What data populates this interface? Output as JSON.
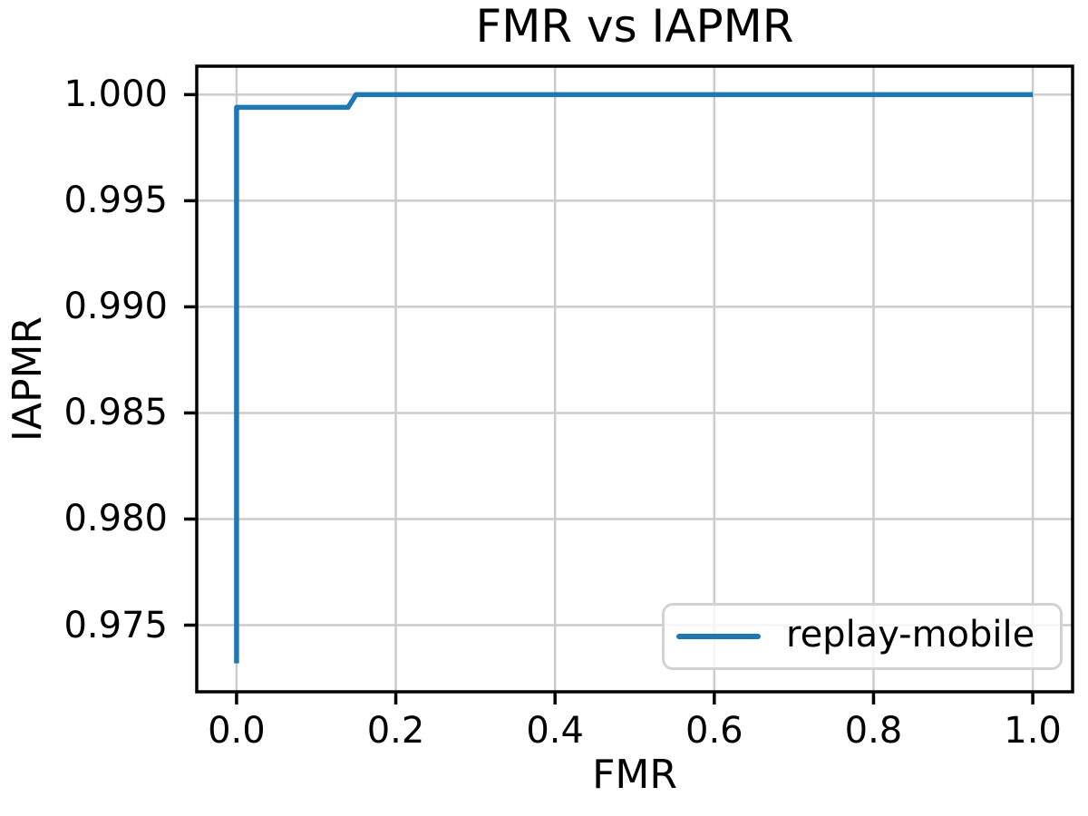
{
  "chart_data": {
    "type": "line",
    "title": "FMR vs IAPMR",
    "xlabel": "FMR",
    "ylabel": "IAPMR",
    "xlim": [
      -0.05,
      1.05
    ],
    "ylim": [
      0.97186,
      1.00134
    ],
    "grid": true,
    "legend_position": "lower right",
    "xticks": {
      "values": [
        0.0,
        0.2,
        0.4,
        0.6,
        0.8,
        1.0
      ],
      "labels": [
        "0.0",
        "0.2",
        "0.4",
        "0.6",
        "0.8",
        "1.0"
      ]
    },
    "yticks": {
      "values": [
        0.975,
        0.98,
        0.985,
        0.99,
        0.995,
        1.0
      ],
      "labels": [
        "0.975",
        "0.980",
        "0.985",
        "0.990",
        "0.995",
        "1.000"
      ]
    },
    "series": [
      {
        "name": "replay-mobile",
        "color": "#1f77b4",
        "points": [
          [
            0.0,
            0.9732
          ],
          [
            0.0,
            0.9994
          ],
          [
            0.14,
            0.9994
          ],
          [
            0.15,
            1.0
          ],
          [
            1.0,
            1.0
          ]
        ]
      }
    ]
  },
  "colors": {
    "grid": "#cccccc",
    "spine": "#000000",
    "tick": "#000000",
    "legend_border": "#d2d2d2",
    "background": "#ffffff"
  }
}
